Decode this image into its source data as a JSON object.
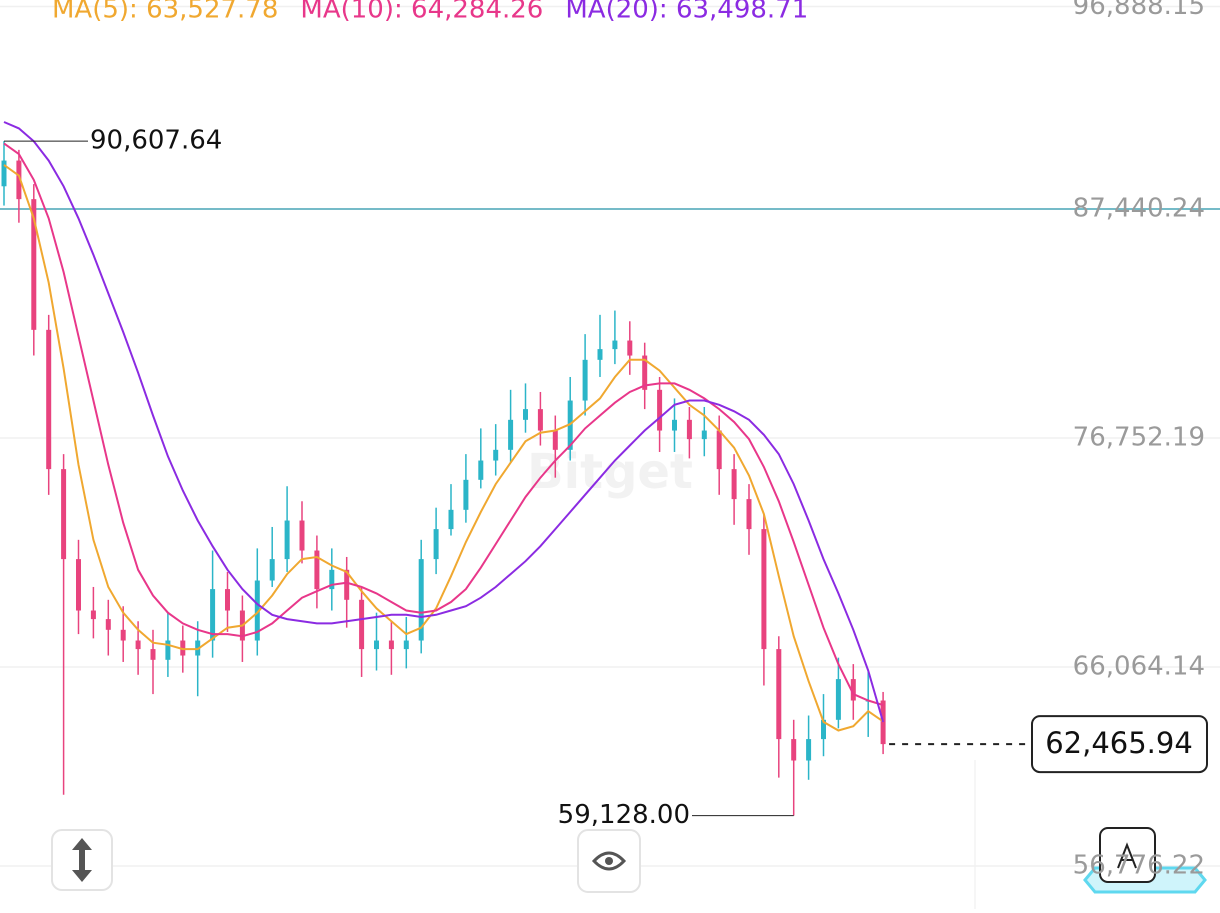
{
  "chart_data": {
    "type": "candlestick",
    "watermark": "Bitget",
    "ylim": [
      55190,
      97194
    ],
    "yticks": [
      {
        "value": 96888.15,
        "label": "96,888.15"
      },
      {
        "value": 87440.24,
        "label": "87,440.24"
      },
      {
        "value": 76752.19,
        "label": "76,752.19"
      },
      {
        "value": 66064.14,
        "label": "66,064.14"
      },
      {
        "value": 56776.22,
        "label": "56,776.22"
      }
    ],
    "grid": true,
    "up_color": "#2bb5c8",
    "down_color": "#e8437e",
    "price_line": {
      "value": 87440.24,
      "color": "#4aa7b8"
    },
    "high_label": {
      "value": 90607.64,
      "label": "90,607.64",
      "index": 0
    },
    "low_label": {
      "value": 59128,
      "label": "59,128.00",
      "index": 53
    },
    "current_price": {
      "value": 62465.94,
      "label": "62,465.94"
    },
    "open": [
      88500,
      89700,
      87900,
      81800,
      75300,
      71100,
      68700,
      68300,
      67800,
      67300,
      66900,
      66400,
      67300,
      66600,
      67300,
      69700,
      68700,
      67300,
      70100,
      71100,
      72900,
      71500,
      69700,
      70600,
      69200,
      66900,
      67300,
      66900,
      67300,
      71100,
      72500,
      73400,
      74800,
      75700,
      76200,
      77600,
      78100,
      77100,
      76200,
      78500,
      80400,
      80900,
      81300,
      80600,
      79000,
      77100,
      77600,
      76700,
      77100,
      75300,
      73900,
      72500,
      66900,
      62700,
      61700,
      62700,
      63600,
      65500,
      64500,
      64500
    ],
    "high": [
      90607.64,
      90200,
      88600,
      82500,
      76000,
      72000,
      69800,
      69200,
      68900,
      68200,
      67800,
      68600,
      68000,
      68200,
      71500,
      70500,
      69400,
      71600,
      72600,
      74500,
      73800,
      72200,
      71600,
      71200,
      69800,
      68600,
      68200,
      68400,
      72000,
      73500,
      74600,
      76000,
      77200,
      77400,
      79000,
      79300,
      78900,
      77800,
      79600,
      81600,
      82500,
      82700,
      82200,
      81200,
      79600,
      78600,
      78200,
      78200,
      77800,
      76000,
      74600,
      73200,
      67500,
      63600,
      63800,
      64800,
      66500,
      66200,
      65900,
      64900
    ],
    "low": [
      87600,
      86800,
      80600,
      74100,
      60100,
      67600,
      67400,
      66600,
      66300,
      65700,
      64800,
      65600,
      65800,
      64700,
      66500,
      67700,
      66300,
      66600,
      69800,
      70500,
      70900,
      68800,
      68700,
      67900,
      65600,
      65900,
      65700,
      66000,
      66700,
      70400,
      72200,
      72800,
      74400,
      75000,
      75600,
      77000,
      76400,
      74900,
      75700,
      77800,
      79600,
      80200,
      79700,
      78100,
      76100,
      76100,
      75800,
      75900,
      74100,
      72700,
      71300,
      65200,
      60900,
      59128,
      60800,
      61900,
      63200,
      63600,
      62800,
      62000
    ],
    "close": [
      89700,
      87900,
      81800,
      75300,
      71100,
      68700,
      68300,
      67800,
      67300,
      66900,
      66400,
      67300,
      66600,
      67300,
      69700,
      68700,
      67300,
      70100,
      71100,
      72900,
      71500,
      69700,
      70600,
      69200,
      66900,
      67300,
      66900,
      67300,
      71100,
      72500,
      73400,
      74800,
      75700,
      76200,
      77600,
      78100,
      77100,
      76200,
      78500,
      80400,
      80900,
      81300,
      80600,
      79000,
      77100,
      77600,
      76700,
      77100,
      75300,
      73900,
      72500,
      66900,
      62700,
      61700,
      62700,
      63600,
      65500,
      64500,
      64500,
      62465.94
    ],
    "series": [
      {
        "name": "MA(5)",
        "legend": "MA(5): 63,527.78",
        "color": "#f0a830",
        "values": [
          89500,
          89000,
          87000,
          84000,
          80000,
          75500,
          72000,
          69800,
          68600,
          67800,
          67200,
          67100,
          66900,
          66900,
          67400,
          67900,
          68000,
          68600,
          69400,
          70400,
          71100,
          71200,
          70800,
          70500,
          69600,
          68800,
          68200,
          67600,
          67900,
          68800,
          70300,
          71900,
          73300,
          74600,
          75600,
          76600,
          77000,
          77100,
          77400,
          78000,
          78600,
          79600,
          80400,
          80400,
          79900,
          79100,
          78300,
          77800,
          77100,
          76300,
          75000,
          73200,
          70300,
          67500,
          65400,
          63500,
          63100,
          63300,
          64000,
          63527.78
        ]
      },
      {
        "name": "MA(10)",
        "legend": "MA(10): 64,284.26",
        "color": "#e8378a",
        "values": [
          90500,
          90000,
          88800,
          87000,
          84500,
          81500,
          78500,
          75500,
          72800,
          70600,
          69400,
          68600,
          68100,
          67800,
          67600,
          67600,
          67500,
          67700,
          68100,
          68700,
          69300,
          69600,
          69900,
          70000,
          69800,
          69500,
          69100,
          68700,
          68600,
          68700,
          69100,
          69700,
          70700,
          71800,
          72900,
          74000,
          74900,
          75700,
          76400,
          77200,
          77800,
          78400,
          78900,
          79200,
          79300,
          79300,
          79000,
          78600,
          78100,
          77500,
          76700,
          75400,
          73800,
          71900,
          69900,
          67900,
          66200,
          64800,
          64500,
          64284.26
        ]
      },
      {
        "name": "MA(20)",
        "legend": "MA(20): 63,498.71",
        "color": "#8b2be2",
        "values": [
          91500,
          91200,
          90600,
          89700,
          88500,
          87000,
          85300,
          83500,
          81700,
          79800,
          77800,
          75900,
          74300,
          72900,
          71700,
          70600,
          69700,
          69000,
          68500,
          68300,
          68200,
          68100,
          68100,
          68200,
          68300,
          68400,
          68500,
          68500,
          68400,
          68500,
          68700,
          68900,
          69300,
          69800,
          70400,
          71000,
          71700,
          72500,
          73300,
          74100,
          74900,
          75700,
          76400,
          77100,
          77700,
          78300,
          78500,
          78500,
          78300,
          78000,
          77600,
          76900,
          76000,
          74600,
          72900,
          71100,
          69500,
          67800,
          65900,
          63498.71
        ]
      }
    ]
  }
}
